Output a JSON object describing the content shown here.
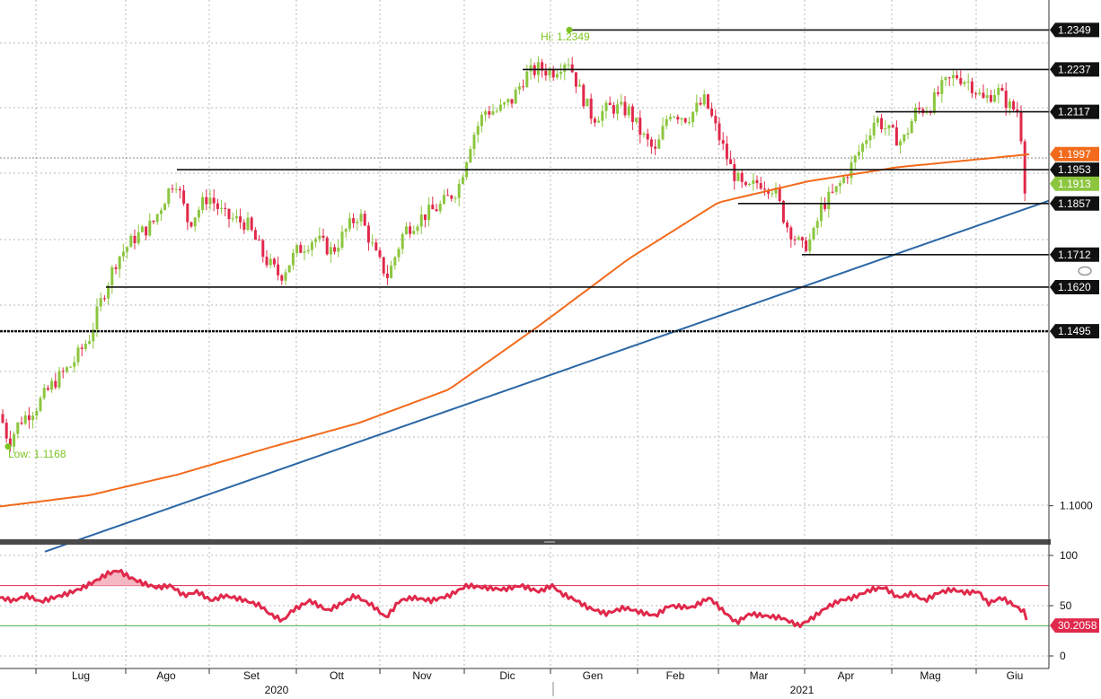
{
  "colors": {
    "up_candle": "#8cc63f",
    "down_candle": "#e0294b",
    "moving_average": "#f26a1b",
    "trendline": "#2a67a6",
    "rsi_line": "#e0294b",
    "rsi_overbought": "#e0294b",
    "rsi_oversold": "#4caf50",
    "annotation": "#7cc423",
    "level_label_bg": "#111111",
    "grid": "#b8b8b8"
  },
  "chart_data": [
    {
      "type": "candlestick",
      "title": "",
      "ylim": [
        1.0905,
        1.2434
      ],
      "x_months": [
        "Lug",
        "Ago",
        "Set",
        "Ott",
        "Nov",
        "Dic",
        "Gen",
        "Feb",
        "Mar",
        "Apr",
        "Mag",
        "Giu"
      ],
      "x_years": [
        "2020",
        "2021"
      ],
      "y_ticks": [
        "1.1000"
      ],
      "grid": true,
      "annotations": {
        "high": "Hi: 1.2349",
        "low": "Low: 1.1168"
      },
      "horizontal_levels": [
        {
          "value": 1.2349,
          "label": "1.2349",
          "bg": "#111111"
        },
        {
          "value": 1.2237,
          "label": "1.2237",
          "bg": "#111111"
        },
        {
          "value": 1.2117,
          "label": "1.2117",
          "bg": "#111111"
        },
        {
          "value": 1.1953,
          "label": "1.1953",
          "bg": "#111111"
        },
        {
          "value": 1.1857,
          "label": "1.1857",
          "bg": "#111111"
        },
        {
          "value": 1.1712,
          "label": "1.1712",
          "bg": "#111111"
        },
        {
          "value": 1.162,
          "label": "1.1620",
          "bg": "#111111"
        },
        {
          "value": 1.1495,
          "label": "1.1495",
          "bg": "#111111"
        }
      ],
      "series_labels": [
        {
          "value": 1.1997,
          "label": "1.1997",
          "bg": "#f26a1b"
        },
        {
          "value": 1.1913,
          "label": "1.1913",
          "bg": "#8cc63f"
        }
      ],
      "close_anchors": [
        [
          0,
          1.126
        ],
        [
          10,
          1.118
        ],
        [
          22,
          1.124
        ],
        [
          40,
          1.128
        ],
        [
          60,
          1.135
        ],
        [
          80,
          1.14
        ],
        [
          100,
          1.148
        ],
        [
          115,
          1.16
        ],
        [
          130,
          1.17
        ],
        [
          150,
          1.176
        ],
        [
          170,
          1.18
        ],
        [
          185,
          1.188
        ],
        [
          195,
          1.193
        ],
        [
          210,
          1.18
        ],
        [
          232,
          1.188
        ],
        [
          250,
          1.182
        ],
        [
          275,
          1.18
        ],
        [
          295,
          1.17
        ],
        [
          312,
          1.165
        ],
        [
          330,
          1.172
        ],
        [
          350,
          1.176
        ],
        [
          370,
          1.172
        ],
        [
          385,
          1.178
        ],
        [
          400,
          1.183
        ],
        [
          420,
          1.17
        ],
        [
          432,
          1.165
        ],
        [
          450,
          1.178
        ],
        [
          470,
          1.182
        ],
        [
          490,
          1.185
        ],
        [
          510,
          1.19
        ],
        [
          525,
          1.204
        ],
        [
          540,
          1.212
        ],
        [
          555,
          1.212
        ],
        [
          570,
          1.215
        ],
        [
          585,
          1.222
        ],
        [
          600,
          1.224
        ],
        [
          615,
          1.223
        ],
        [
          632,
          1.227
        ],
        [
          645,
          1.218
        ],
        [
          660,
          1.21
        ],
        [
          680,
          1.213
        ],
        [
          700,
          1.212
        ],
        [
          715,
          1.205
        ],
        [
          730,
          1.2
        ],
        [
          745,
          1.212
        ],
        [
          765,
          1.21
        ],
        [
          785,
          1.215
        ],
        [
          800,
          1.205
        ],
        [
          815,
          1.195
        ],
        [
          830,
          1.189
        ],
        [
          845,
          1.192
        ],
        [
          862,
          1.19
        ],
        [
          875,
          1.18
        ],
        [
          893,
          1.173
        ],
        [
          905,
          1.176
        ],
        [
          915,
          1.185
        ],
        [
          930,
          1.189
        ],
        [
          945,
          1.195
        ],
        [
          960,
          1.202
        ],
        [
          975,
          1.21
        ],
        [
          990,
          1.206
        ],
        [
          1005,
          1.203
        ],
        [
          1020,
          1.212
        ],
        [
          1035,
          1.213
        ],
        [
          1050,
          1.219
        ],
        [
          1065,
          1.222
        ],
        [
          1080,
          1.22
        ],
        [
          1095,
          1.215
        ],
        [
          1110,
          1.218
        ],
        [
          1125,
          1.213
        ],
        [
          1135,
          1.2117
        ],
        [
          1142,
          1.188
        ],
        [
          1147,
          1.1913
        ]
      ],
      "moving_average_anchors": [
        [
          0,
          1.0998
        ],
        [
          100,
          1.103
        ],
        [
          200,
          1.109
        ],
        [
          300,
          1.1165
        ],
        [
          400,
          1.1235
        ],
        [
          500,
          1.133
        ],
        [
          600,
          1.151
        ],
        [
          700,
          1.17
        ],
        [
          800,
          1.186
        ],
        [
          900,
          1.192
        ],
        [
          1000,
          1.196
        ],
        [
          1100,
          1.1985
        ],
        [
          1147,
          1.1997
        ]
      ],
      "trendline": {
        "start": [
          50,
          1.087
        ],
        "end": [
          1168,
          1.1865
        ]
      }
    },
    {
      "type": "line",
      "title": "",
      "ylim": [
        0,
        100
      ],
      "y_ticks": [
        "100",
        "50",
        "0"
      ],
      "overbought": 70,
      "oversold": 30,
      "last_value": 30.2058,
      "last_label": "30.2058",
      "rsi_anchors": [
        [
          0,
          58
        ],
        [
          15,
          55
        ],
        [
          30,
          60
        ],
        [
          45,
          54
        ],
        [
          60,
          58
        ],
        [
          75,
          62
        ],
        [
          90,
          67
        ],
        [
          105,
          74
        ],
        [
          120,
          82
        ],
        [
          132,
          85
        ],
        [
          145,
          78
        ],
        [
          160,
          72
        ],
        [
          175,
          68
        ],
        [
          190,
          70
        ],
        [
          205,
          60
        ],
        [
          220,
          64
        ],
        [
          235,
          55
        ],
        [
          250,
          60
        ],
        [
          270,
          56
        ],
        [
          290,
          50
        ],
        [
          300,
          42
        ],
        [
          315,
          35
        ],
        [
          325,
          45
        ],
        [
          345,
          55
        ],
        [
          365,
          45
        ],
        [
          380,
          52
        ],
        [
          395,
          60
        ],
        [
          415,
          50
        ],
        [
          430,
          38
        ],
        [
          445,
          55
        ],
        [
          460,
          58
        ],
        [
          480,
          55
        ],
        [
          500,
          60
        ],
        [
          520,
          70
        ],
        [
          540,
          68
        ],
        [
          560,
          66
        ],
        [
          580,
          70
        ],
        [
          600,
          64
        ],
        [
          615,
          70
        ],
        [
          625,
          62
        ],
        [
          640,
          56
        ],
        [
          655,
          48
        ],
        [
          675,
          42
        ],
        [
          695,
          48
        ],
        [
          715,
          43
        ],
        [
          730,
          40
        ],
        [
          745,
          50
        ],
        [
          770,
          48
        ],
        [
          790,
          58
        ],
        [
          805,
          45
        ],
        [
          820,
          33
        ],
        [
          835,
          42
        ],
        [
          850,
          40
        ],
        [
          870,
          38
        ],
        [
          890,
          30
        ],
        [
          905,
          38
        ],
        [
          920,
          48
        ],
        [
          935,
          55
        ],
        [
          950,
          58
        ],
        [
          970,
          66
        ],
        [
          985,
          68
        ],
        [
          1000,
          58
        ],
        [
          1015,
          62
        ],
        [
          1030,
          55
        ],
        [
          1045,
          63
        ],
        [
          1060,
          66
        ],
        [
          1075,
          63
        ],
        [
          1090,
          64
        ],
        [
          1100,
          52
        ],
        [
          1115,
          58
        ],
        [
          1130,
          50
        ],
        [
          1140,
          44
        ],
        [
          1145,
          30.2058
        ]
      ]
    }
  ]
}
